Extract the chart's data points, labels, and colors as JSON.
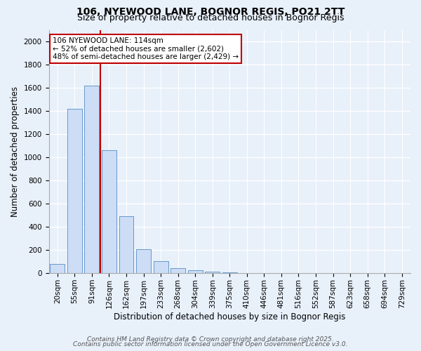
{
  "title1": "106, NYEWOOD LANE, BOGNOR REGIS, PO21 2TT",
  "title2": "Size of property relative to detached houses in Bognor Regis",
  "xlabel": "Distribution of detached houses by size in Bognor Regis",
  "ylabel": "Number of detached properties",
  "categories": [
    "20sqm",
    "55sqm",
    "91sqm",
    "126sqm",
    "162sqm",
    "197sqm",
    "233sqm",
    "268sqm",
    "304sqm",
    "339sqm",
    "375sqm",
    "410sqm",
    "446sqm",
    "481sqm",
    "516sqm",
    "552sqm",
    "587sqm",
    "623sqm",
    "658sqm",
    "694sqm",
    "729sqm"
  ],
  "values": [
    80,
    1420,
    1620,
    1060,
    490,
    205,
    105,
    45,
    25,
    13,
    8,
    0,
    0,
    0,
    0,
    0,
    0,
    0,
    0,
    0,
    0
  ],
  "bar_color": "#cdddf5",
  "bar_edge_color": "#6699cc",
  "bar_width": 0.85,
  "ylim": [
    0,
    2100
  ],
  "yticks": [
    0,
    200,
    400,
    600,
    800,
    1000,
    1200,
    1400,
    1600,
    1800,
    2000
  ],
  "vline_x": 2.5,
  "vline_color": "#c00000",
  "annotation_line1": "106 NYEWOOD LANE: 114sqm",
  "annotation_line2": "← 52% of detached houses are smaller (2,602)",
  "annotation_line3": "48% of semi-detached houses are larger (2,429) →",
  "annotation_box_color": "#ffffff",
  "annotation_box_edge": "#c00000",
  "footer1": "Contains HM Land Registry data © Crown copyright and database right 2025.",
  "footer2": "Contains public sector information licensed under the Open Government Licence v3.0.",
  "bg_color": "#e8f0fa",
  "grid_color": "#ffffff",
  "title1_fontsize": 10,
  "title2_fontsize": 9,
  "axis_label_fontsize": 8.5,
  "tick_fontsize": 7.5,
  "annotation_fontsize": 7.5,
  "footer_fontsize": 6.5
}
